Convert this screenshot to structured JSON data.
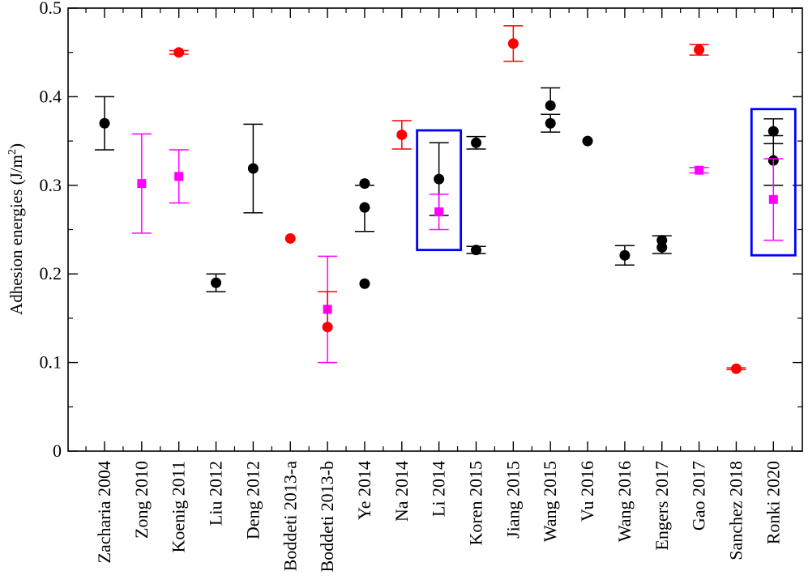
{
  "chart_data": {
    "type": "scatter",
    "title": "",
    "xlabel": "",
    "ylabel": "Adhesion energies (J/m",
    "ylabel_sup": "2",
    "ylabel_close": ")",
    "ylim": [
      0,
      0.5
    ],
    "yticks": [
      {
        "value": 0,
        "label": "0"
      },
      {
        "value": 0.1,
        "label": "0.1"
      },
      {
        "value": 0.2,
        "label": "0.2"
      },
      {
        "value": 0.3,
        "label": "0.3"
      },
      {
        "value": 0.4,
        "label": "0.4"
      },
      {
        "value": 0.5,
        "label": "0.5"
      }
    ],
    "categories": [
      "Zacharia 2004",
      "Zong 2010",
      "Koenig 2011",
      "Liu 2012",
      "Deng 2012",
      "Boddeti 2013-a",
      "Boddeti 2013-b",
      "Ye 2014",
      "Na 2014",
      "Li 2014",
      "Koren 2015",
      "Jiang 2015",
      "Wang 2015",
      "Vu 2016",
      "Wang 2016",
      "Engers 2017",
      "Gao 2017",
      "Sanchez 2018",
      "Ronki 2020"
    ],
    "grid": false,
    "legend": "none",
    "colors": {
      "black": "#000000",
      "red": "#ff0000",
      "magenta": "#ff00ff",
      "box": "#0000ff"
    },
    "points": [
      {
        "x": 0,
        "y": 0.37,
        "lo": 0.34,
        "hi": 0.4,
        "color": "black",
        "marker": "circle"
      },
      {
        "x": 1,
        "y": 0.302,
        "lo": 0.246,
        "hi": 0.358,
        "color": "magenta",
        "marker": "square"
      },
      {
        "x": 2,
        "y": 0.45,
        "lo": 0.448,
        "hi": 0.452,
        "color": "red",
        "marker": "circle"
      },
      {
        "x": 2,
        "y": 0.31,
        "lo": 0.28,
        "hi": 0.34,
        "color": "magenta",
        "marker": "square"
      },
      {
        "x": 3,
        "y": 0.19,
        "lo": 0.18,
        "hi": 0.2,
        "color": "black",
        "marker": "circle"
      },
      {
        "x": 4,
        "y": 0.319,
        "lo": 0.269,
        "hi": 0.369,
        "color": "black",
        "marker": "circle"
      },
      {
        "x": 5,
        "y": 0.24,
        "lo": null,
        "hi": null,
        "color": "red",
        "marker": "circle"
      },
      {
        "x": 6,
        "y": 0.16,
        "lo": 0.1,
        "hi": 0.22,
        "color": "magenta",
        "marker": "square"
      },
      {
        "x": 6,
        "y": 0.14,
        "lo": null,
        "hi": 0.18,
        "color": "red",
        "marker": "circle"
      },
      {
        "x": 7,
        "y": 0.302,
        "lo": null,
        "hi": 0.3,
        "color": "black",
        "marker": "circle"
      },
      {
        "x": 7,
        "y": 0.275,
        "lo": 0.248,
        "hi": null,
        "color": "black",
        "marker": "circle"
      },
      {
        "x": 7,
        "y": 0.189,
        "lo": null,
        "hi": null,
        "color": "black",
        "marker": "circle"
      },
      {
        "x": 8,
        "y": 0.357,
        "lo": 0.341,
        "hi": 0.373,
        "color": "red",
        "marker": "circle"
      },
      {
        "x": 9,
        "y": 0.307,
        "lo": 0.266,
        "hi": 0.348,
        "color": "black",
        "marker": "circle"
      },
      {
        "x": 9,
        "y": 0.27,
        "lo": 0.25,
        "hi": 0.29,
        "color": "magenta",
        "marker": "square"
      },
      {
        "x": 10,
        "y": 0.348,
        "lo": 0.341,
        "hi": 0.355,
        "color": "black",
        "marker": "circle"
      },
      {
        "x": 10,
        "y": 0.227,
        "lo": 0.223,
        "hi": 0.231,
        "color": "black",
        "marker": "circle"
      },
      {
        "x": 11,
        "y": 0.46,
        "lo": 0.44,
        "hi": 0.48,
        "color": "red",
        "marker": "circle"
      },
      {
        "x": 12,
        "y": 0.39,
        "lo": null,
        "hi": 0.41,
        "color": "black",
        "marker": "circle"
      },
      {
        "x": 12,
        "y": 0.37,
        "lo": 0.36,
        "hi": 0.38,
        "color": "black",
        "marker": "circle"
      },
      {
        "x": 13,
        "y": 0.35,
        "lo": null,
        "hi": null,
        "color": "black",
        "marker": "circle"
      },
      {
        "x": 14,
        "y": 0.221,
        "lo": 0.21,
        "hi": 0.232,
        "color": "black",
        "marker": "circle"
      },
      {
        "x": 15,
        "y": 0.238,
        "lo": null,
        "hi": 0.243,
        "color": "black",
        "marker": "circle"
      },
      {
        "x": 15,
        "y": 0.23,
        "lo": 0.223,
        "hi": null,
        "color": "black",
        "marker": "circle"
      },
      {
        "x": 16,
        "y": 0.453,
        "lo": 0.447,
        "hi": 0.459,
        "color": "red",
        "marker": "circle"
      },
      {
        "x": 16,
        "y": 0.317,
        "lo": 0.314,
        "hi": 0.32,
        "color": "magenta",
        "marker": "square"
      },
      {
        "x": 17,
        "y": 0.093,
        "lo": 0.092,
        "hi": 0.094,
        "color": "red",
        "marker": "circle"
      },
      {
        "x": 18,
        "y": 0.361,
        "lo": 0.347,
        "hi": 0.375,
        "color": "black",
        "marker": "circle"
      },
      {
        "x": 18,
        "y": 0.328,
        "lo": 0.3,
        "hi": 0.356,
        "color": "black",
        "marker": "circle"
      },
      {
        "x": 18,
        "y": 0.284,
        "lo": 0.238,
        "hi": 0.33,
        "color": "magenta",
        "marker": "square"
      }
    ],
    "highlight_boxes": [
      {
        "category": "Li 2014",
        "y_min": 0.227,
        "y_max": 0.362
      },
      {
        "category": "Ronki 2020",
        "y_min": 0.221,
        "y_max": 0.386
      }
    ]
  }
}
